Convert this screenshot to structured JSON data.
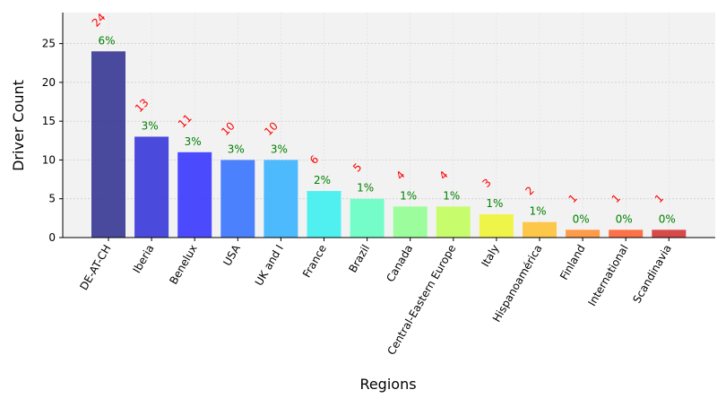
{
  "chart_data": {
    "type": "bar",
    "xlabel": "Regions",
    "ylabel": "Driver Count",
    "ylim": [
      0,
      29
    ],
    "yticks": [
      0,
      5,
      10,
      15,
      20,
      25
    ],
    "grid": true,
    "categories": [
      "DE-AT-CH",
      "Iberia",
      "Benelux",
      "USA",
      "UK and I",
      "France",
      "Brazil",
      "Canada",
      "Central-Eastern Europe",
      "Italy",
      "Hispanoamérica",
      "Finland",
      "International",
      "Scandinavia"
    ],
    "values": [
      24,
      13,
      11,
      10,
      10,
      6,
      5,
      4,
      4,
      3,
      2,
      1,
      1,
      1
    ],
    "percent_labels": [
      "6%",
      "3%",
      "3%",
      "3%",
      "3%",
      "2%",
      "1%",
      "1%",
      "1%",
      "1%",
      "1%",
      "0%",
      "0%",
      "0%"
    ],
    "value_labels": [
      "24",
      "13",
      "11",
      "10",
      "10",
      "6",
      "5",
      "4",
      "4",
      "3",
      "2",
      "1",
      "1",
      "1"
    ],
    "colors": [
      "#2b2b8f",
      "#2d2dd9",
      "#2e2eff",
      "#2f6dff",
      "#2fb0ff",
      "#35f0f0",
      "#5effc2",
      "#8cff8c",
      "#c0ff55",
      "#eef52b",
      "#ffc02b",
      "#ff8c2b",
      "#ff5a2b",
      "#d42b2b"
    ],
    "value_label_color": "#ff0000",
    "percent_label_color": "#008000",
    "plot_background": "#f2f2f2"
  }
}
